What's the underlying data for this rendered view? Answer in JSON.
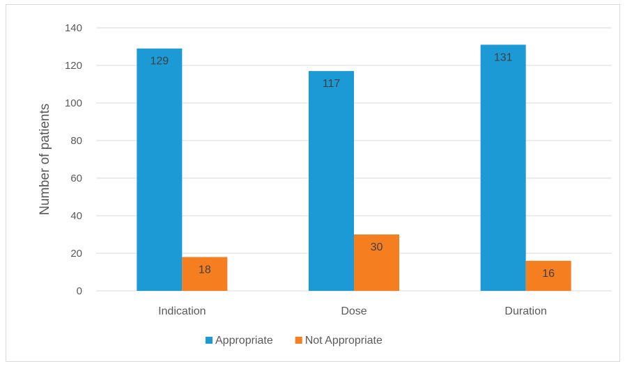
{
  "chart_data": {
    "type": "bar",
    "categories": [
      "Indication",
      "Dose",
      "Duration"
    ],
    "series": [
      {
        "name": "Appropriate",
        "values": [
          129,
          117,
          131
        ],
        "color": "#1B9AD6"
      },
      {
        "name": "Not Appropriate",
        "values": [
          18,
          30,
          16
        ],
        "color": "#F57E21"
      }
    ],
    "title": "",
    "xlabel": "",
    "ylabel": "Number of patients",
    "ylim": [
      0,
      140
    ],
    "yticks": [
      0,
      20,
      40,
      60,
      80,
      100,
      120,
      140
    ],
    "grid": true,
    "legend": "bottom"
  }
}
